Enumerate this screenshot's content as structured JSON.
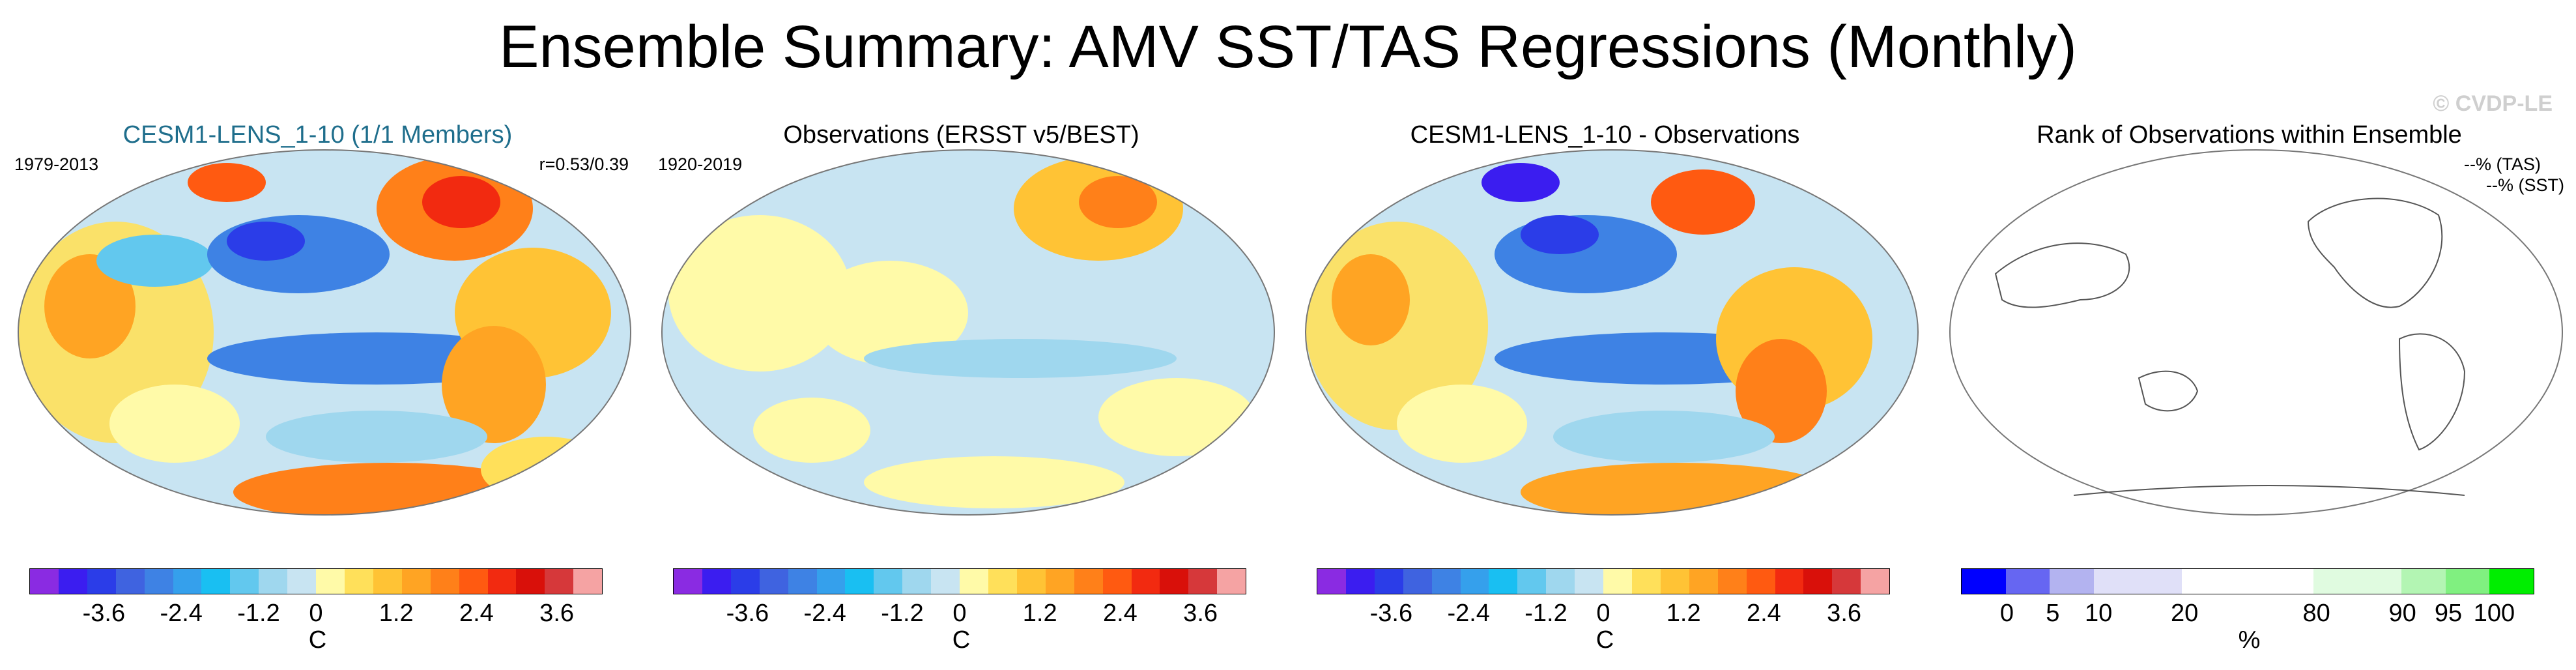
{
  "title": "Ensemble Summary: AMV SST/TAS Regressions (Monthly)",
  "watermark": "© CVDP-LE",
  "colors": {
    "diverging_scale": [
      "#8a2be2",
      "#3b1df0",
      "#2b3de8",
      "#3f63e0",
      "#3e82e4",
      "#35a0ec",
      "#19bff2",
      "#62c8ee",
      "#9fd7ee",
      "#c8e4f2",
      "#fffaa8",
      "#ffe05a",
      "#ffc335",
      "#ffa423",
      "#ff8019",
      "#ff5a11",
      "#f22a10",
      "#d9100a",
      "#d6383a",
      "#f5a3a3"
    ],
    "rank_scale": [
      "#0000ff",
      "#6666f2",
      "#b3b3f0",
      "#e0e0f8",
      "#e0e0f8",
      "#ffffff",
      "#ffffff",
      "#ffffff",
      "#e0fbe0",
      "#e0fbe0",
      "#b3f5b3",
      "#80f080",
      "#00ee00"
    ],
    "ocean_bg": "#c8e4f2",
    "coast": "#ffffff"
  },
  "panels": [
    {
      "title": "CESM1-LENS_1-10 (1/1 Members)",
      "title_color": "#1f6e8c",
      "period": "1979-2013",
      "stat": "r=0.53/0.39",
      "units": "C",
      "ticks": [
        "-3.6",
        "-2.4",
        "-1.2",
        "0",
        "1.2",
        "2.4",
        "3.6"
      ]
    },
    {
      "title": "Observations (ERSST v5/BEST)",
      "title_color": "#000000",
      "period": "1920-2019",
      "stat": "",
      "units": "C",
      "ticks": [
        "-3.6",
        "-2.4",
        "-1.2",
        "0",
        "1.2",
        "2.4",
        "3.6"
      ]
    },
    {
      "title": "CESM1-LENS_1-10 - Observations",
      "title_color": "#000000",
      "period": "",
      "stat": "",
      "units": "C",
      "ticks": [
        "-3.6",
        "-2.4",
        "-1.2",
        "0",
        "1.2",
        "2.4",
        "3.6"
      ]
    },
    {
      "title": "Rank of Observations within Ensemble",
      "title_color": "#000000",
      "period": "",
      "stat_tas": "--% (TAS)",
      "stat_sst": "--% (SST)",
      "units": "%",
      "ticks": [
        "0",
        "5",
        "10",
        "20",
        "80",
        "90",
        "95",
        "100"
      ]
    }
  ]
}
